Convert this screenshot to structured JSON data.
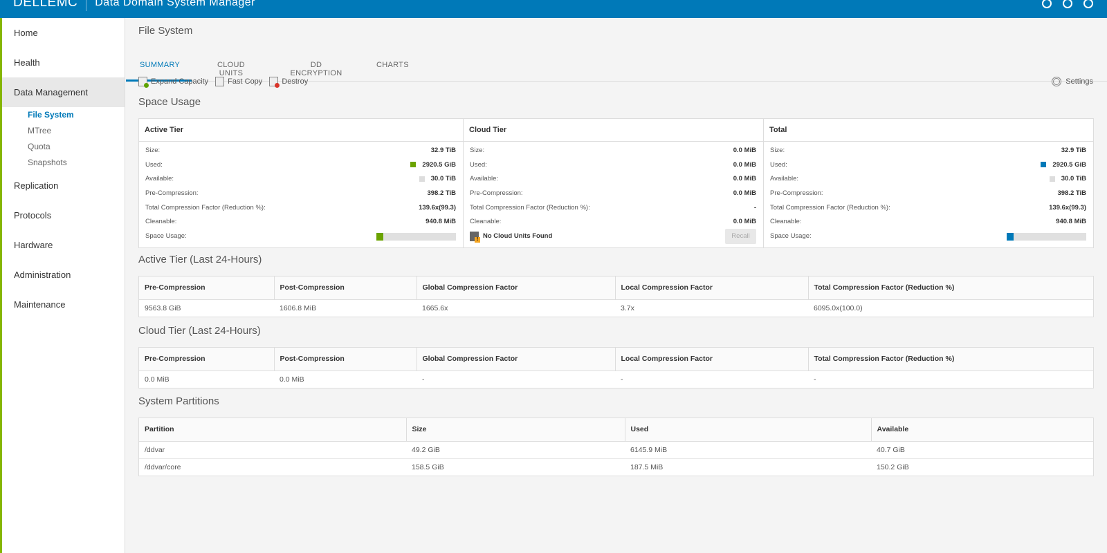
{
  "app": {
    "brand": "DELLEMC",
    "title": "Data Domain System Manager"
  },
  "sidebar": {
    "items": [
      {
        "label": "Home"
      },
      {
        "label": "Health"
      },
      {
        "label": "Data Management",
        "active": true
      },
      {
        "label": "Replication"
      },
      {
        "label": "Protocols"
      },
      {
        "label": "Hardware"
      },
      {
        "label": "Administration"
      },
      {
        "label": "Maintenance"
      }
    ],
    "sub_items": [
      {
        "label": "File System",
        "active": true
      },
      {
        "label": "MTree"
      },
      {
        "label": "Quota"
      },
      {
        "label": "Snapshots"
      }
    ]
  },
  "page": {
    "title": "File System",
    "tabs": [
      "SUMMARY",
      "CLOUD UNITS",
      "DD ENCRYPTION",
      "CHARTS"
    ],
    "active_tab": "SUMMARY"
  },
  "toolbar": {
    "expand_capacity": "Expand Capacity",
    "fast_copy": "Fast Copy",
    "destroy": "Destroy",
    "settings": "Settings"
  },
  "space_usage": {
    "title": "Space Usage",
    "labels": {
      "size": "Size:",
      "used": "Used:",
      "available": "Available:",
      "pre_compression": "Pre-Compression:",
      "tcf": "Total Compression Factor (Reduction %):",
      "cleanable": "Cleanable:",
      "space_usage": "Space Usage:"
    },
    "active": {
      "header": "Active Tier",
      "size": "32.9 TiB",
      "used": "2920.5 GiB",
      "available": "30.0 TiB",
      "pre_compression": "398.2 TiB",
      "tcf": "139.6x(99.3)",
      "cleanable": "940.8 MiB",
      "usage_fraction": 0.09,
      "used_color": "#6ba300"
    },
    "cloud": {
      "header": "Cloud Tier",
      "size": "0.0 MiB",
      "used": "0.0 MiB",
      "available": "0.0 MiB",
      "pre_compression": "0.0 MiB",
      "tcf": "-",
      "cleanable": "0.0 MiB",
      "no_units": "No Cloud Units Found",
      "recall": "Recall"
    },
    "total": {
      "header": "Total",
      "size": "32.9 TiB",
      "used": "2920.5 GiB",
      "available": "30.0 TiB",
      "pre_compression": "398.2 TiB",
      "tcf": "139.6x(99.3)",
      "cleanable": "940.8 MiB",
      "usage_fraction": 0.09,
      "used_color": "#0079b8"
    },
    "available_color": "#dddddd"
  },
  "active_24h": {
    "title": "Active Tier (Last 24-Hours)",
    "headers": [
      "Pre-Compression",
      "Post-Compression",
      "Global Compression Factor",
      "Local Compression Factor",
      "Total Compression Factor (Reduction %)"
    ],
    "row": [
      "9563.8 GiB",
      "1606.8 MiB",
      "1665.6x",
      "3.7x",
      "6095.0x(100.0)"
    ]
  },
  "cloud_24h": {
    "title": "Cloud Tier (Last 24-Hours)",
    "headers": [
      "Pre-Compression",
      "Post-Compression",
      "Global Compression Factor",
      "Local Compression Factor",
      "Total Compression Factor (Reduction %)"
    ],
    "row": [
      "0.0 MiB",
      "0.0 MiB",
      "-",
      "-",
      "-"
    ]
  },
  "partitions": {
    "title": "System Partitions",
    "headers": [
      "Partition",
      "Size",
      "Used",
      "Available"
    ],
    "rows": [
      [
        "/ddvar",
        "49.2 GiB",
        "6145.9 MiB",
        "40.7 GiB"
      ],
      [
        "/ddvar/core",
        "158.5 GiB",
        "187.5 MiB",
        "150.2 GiB"
      ]
    ]
  }
}
